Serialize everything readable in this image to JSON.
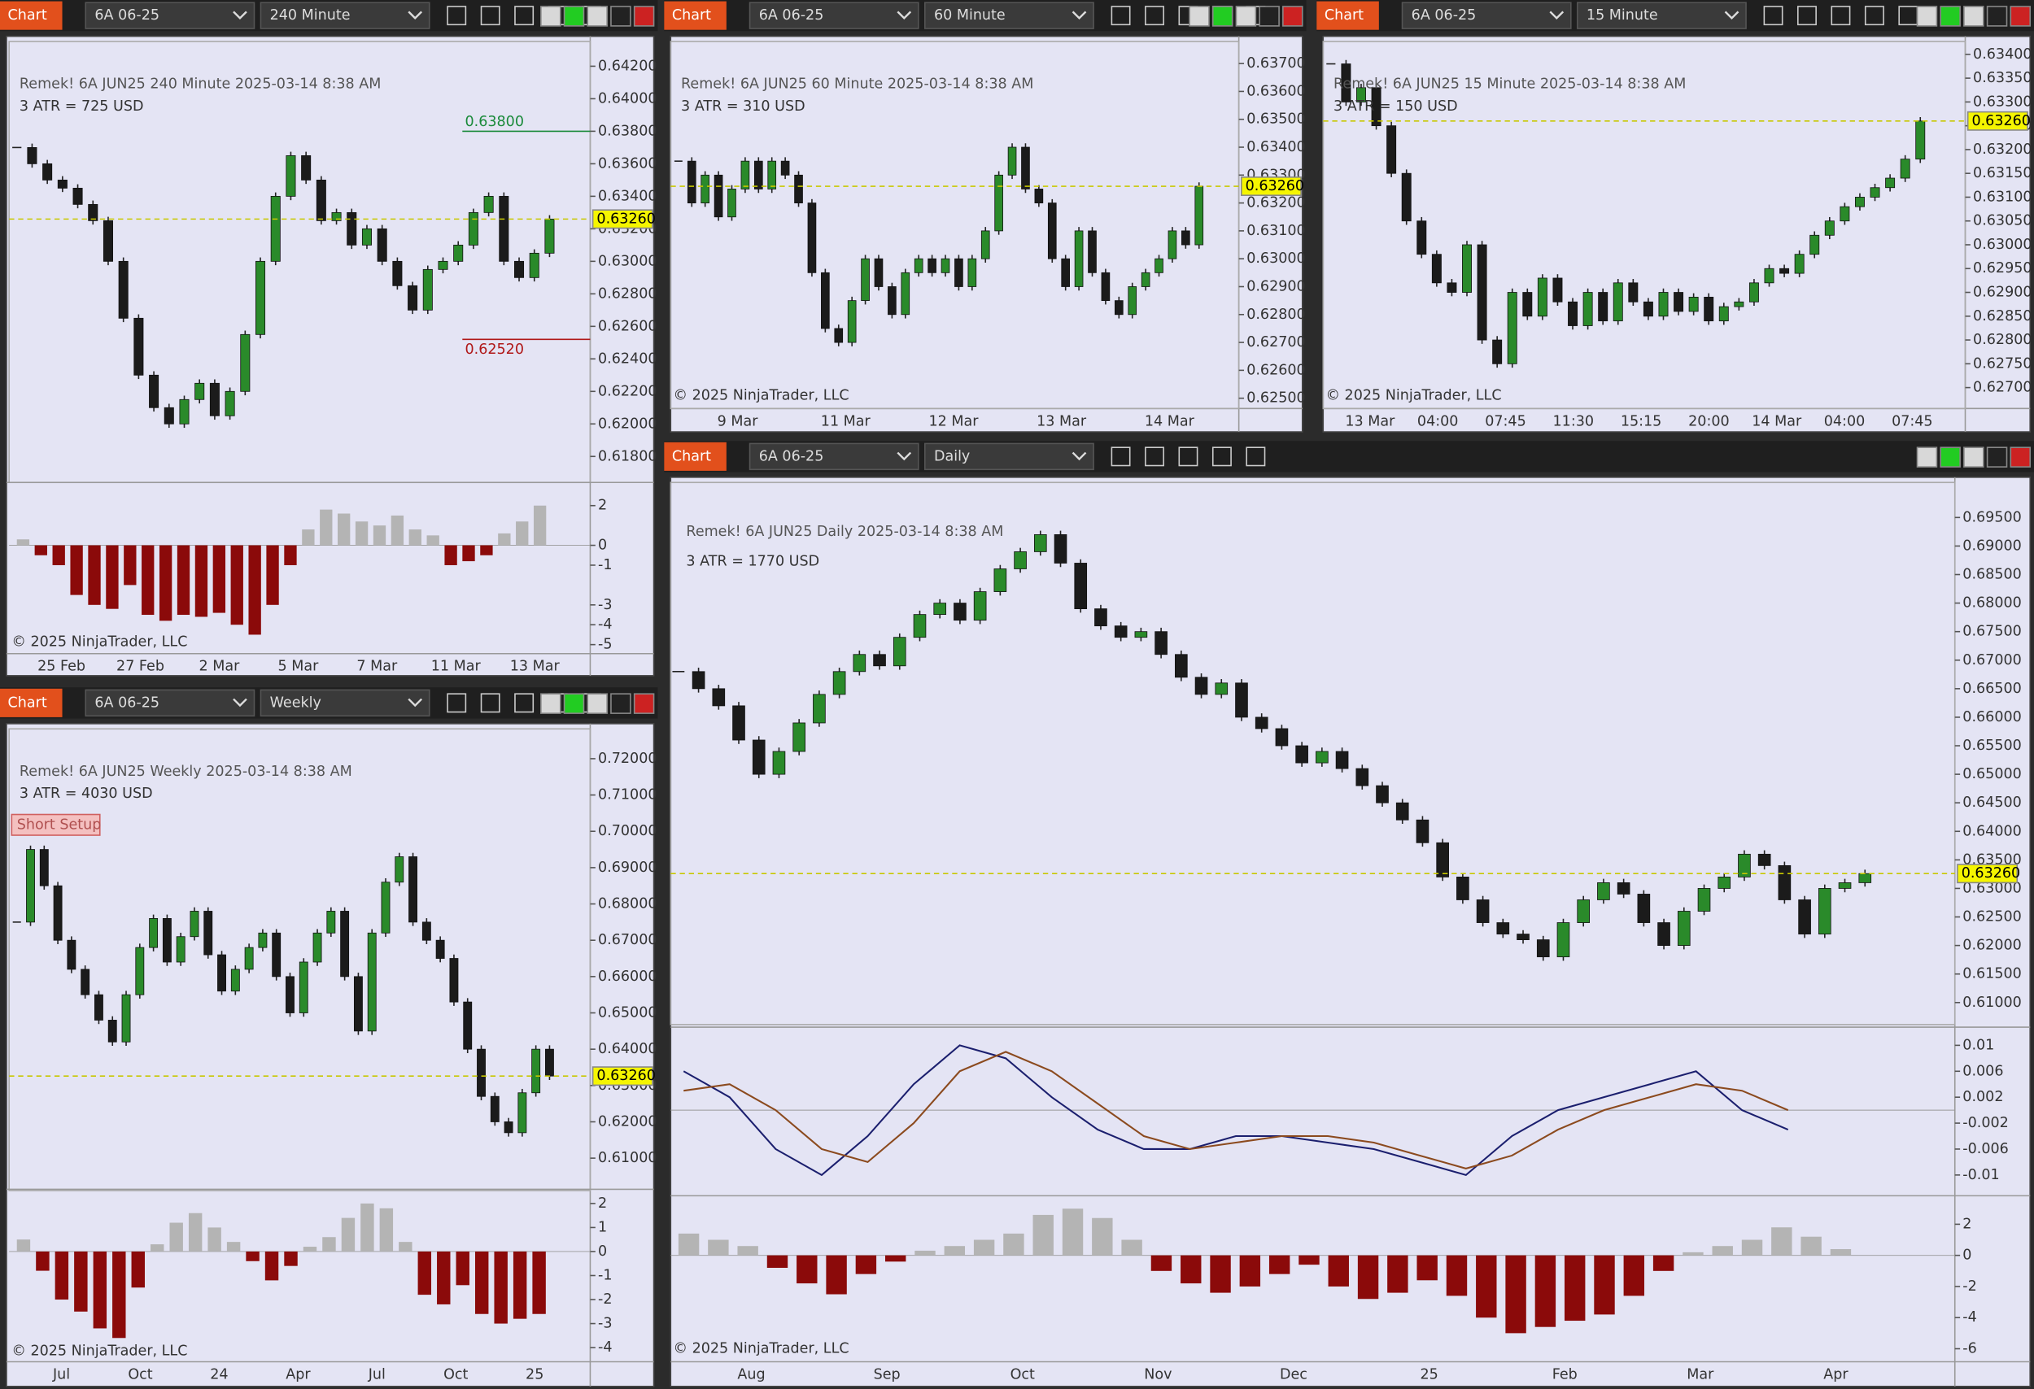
{
  "panels": [
    {
      "toolbar": {
        "button": "Chart",
        "instrument": "6A 06-25",
        "interval": "240 Minute"
      },
      "header": "Remek!  6A JUN25  240 Minute  2025-03-14 8:38 AM",
      "atr": "3 ATR = 725 USD",
      "ylim": [
        0.6164,
        0.64352
      ],
      "price_ticks": [
        {
          "value": 0.642,
          "label": "0.64200"
        },
        {
          "value": 0.64,
          "label": "0.64000"
        },
        {
          "value": 0.638,
          "label": "0.63800"
        },
        {
          "value": 0.636,
          "label": "0.63600"
        },
        {
          "value": 0.634,
          "label": "0.63400"
        },
        {
          "value": 0.632,
          "label": "0.63200"
        },
        {
          "value": 0.63,
          "label": "0.63000"
        },
        {
          "value": 0.628,
          "label": "0.62800"
        },
        {
          "value": 0.626,
          "label": "0.62600"
        },
        {
          "value": 0.624,
          "label": "0.62400"
        },
        {
          "value": 0.622,
          "label": "0.62200"
        },
        {
          "value": 0.62,
          "label": "0.62000"
        },
        {
          "value": 0.618,
          "label": "0.61800"
        }
      ],
      "closes": [
        0.637,
        0.636,
        0.635,
        0.6345,
        0.6335,
        0.6325,
        0.63,
        0.6265,
        0.623,
        0.621,
        0.62,
        0.6215,
        0.6225,
        0.6205,
        0.622,
        0.6255,
        0.63,
        0.634,
        0.6365,
        0.635,
        0.6325,
        0.633,
        0.631,
        0.632,
        0.63,
        0.6285,
        0.627,
        0.6295,
        0.63,
        0.631,
        0.633,
        0.634,
        0.63,
        0.629,
        0.6305,
        0.6326
      ],
      "last_price": {
        "value": 0.6326,
        "label": "0.63260"
      },
      "levels": [
        {
          "value": 0.638,
          "label": "0.63800",
          "color": "#1a8a3a"
        },
        {
          "value": 0.6252,
          "label": "0.62520",
          "color": "#b01818"
        }
      ],
      "time_labels": [
        "25 Feb",
        "27 Feb",
        "2 Mar",
        "5 Mar",
        "7 Mar",
        "11 Mar",
        "13 Mar"
      ],
      "indicator": {
        "ylim": [
          -5.39,
          2.97
        ],
        "ticks": [
          2,
          0,
          -1,
          -3,
          -4,
          -5
        ],
        "values": [
          0.3,
          -0.5,
          -1,
          -2.5,
          -3,
          -3.2,
          -2,
          -3.5,
          -3.8,
          -3.5,
          -3.6,
          -3.4,
          -4,
          -4.5,
          -3,
          -1,
          0.8,
          1.8,
          1.6,
          1.2,
          1,
          1.5,
          0.8,
          0.5,
          -1,
          -0.8,
          -0.5,
          0.6,
          1.2,
          2
        ]
      },
      "copyright": "© 2025 NinjaTrader, LLC"
    },
    {
      "toolbar": {
        "button": "Chart",
        "instrument": "6A 06-25",
        "interval": "60 Minute"
      },
      "header": "Remek!  6A JUN25  60 Minute  2025-03-14 8:38 AM",
      "atr": "3 ATR = 310 USD",
      "ylim": [
        0.62463,
        0.63779
      ],
      "price_ticks": [
        {
          "value": 0.637,
          "label": "0.63700"
        },
        {
          "value": 0.636,
          "label": "0.63600"
        },
        {
          "value": 0.635,
          "label": "0.63500"
        },
        {
          "value": 0.634,
          "label": "0.63400"
        },
        {
          "value": 0.633,
          "label": "0.63300"
        },
        {
          "value": 0.632,
          "label": "0.63200"
        },
        {
          "value": 0.631,
          "label": "0.63100"
        },
        {
          "value": 0.63,
          "label": "0.63000"
        },
        {
          "value": 0.629,
          "label": "0.62900"
        },
        {
          "value": 0.628,
          "label": "0.62800"
        },
        {
          "value": 0.627,
          "label": "0.62700"
        },
        {
          "value": 0.626,
          "label": "0.62600"
        },
        {
          "value": 0.625,
          "label": "0.62500"
        }
      ],
      "closes": [
        0.6335,
        0.632,
        0.633,
        0.6315,
        0.6325,
        0.6335,
        0.6325,
        0.6335,
        0.633,
        0.632,
        0.6295,
        0.6275,
        0.627,
        0.6285,
        0.63,
        0.629,
        0.628,
        0.6295,
        0.63,
        0.6295,
        0.63,
        0.629,
        0.63,
        0.631,
        0.633,
        0.634,
        0.6325,
        0.632,
        0.63,
        0.629,
        0.631,
        0.6295,
        0.6285,
        0.628,
        0.629,
        0.6295,
        0.63,
        0.631,
        0.6305,
        0.6326
      ],
      "last_price": {
        "value": 0.6326,
        "label": "0.63260"
      },
      "time_labels": [
        "9 Mar",
        "11 Mar",
        "12 Mar",
        "13 Mar",
        "14 Mar"
      ],
      "copyright": "© 2025 NinjaTrader, LLC"
    },
    {
      "toolbar": {
        "button": "Chart",
        "instrument": "6A 06-25",
        "interval": "15 Minute"
      },
      "header": "Remek!  6A JUN25  15 Minute  2025-03-14 8:38 AM",
      "atr": "3 ATR = 150 USD",
      "ylim": [
        0.62656,
        0.63427
      ],
      "price_ticks": [
        {
          "value": 0.634,
          "label": "0.63400"
        },
        {
          "value": 0.6335,
          "label": "0.63350"
        },
        {
          "value": 0.633,
          "label": "0.63300"
        },
        {
          "value": 0.6325,
          "label": "0.63250"
        },
        {
          "value": 0.632,
          "label": "0.63200"
        },
        {
          "value": 0.6315,
          "label": "0.63150"
        },
        {
          "value": 0.631,
          "label": "0.63100"
        },
        {
          "value": 0.6305,
          "label": "0.63050"
        },
        {
          "value": 0.63,
          "label": "0.63000"
        },
        {
          "value": 0.6295,
          "label": "0.62950"
        },
        {
          "value": 0.629,
          "label": "0.62900"
        },
        {
          "value": 0.6285,
          "label": "0.62850"
        },
        {
          "value": 0.628,
          "label": "0.62800"
        },
        {
          "value": 0.6275,
          "label": "0.62750"
        },
        {
          "value": 0.627,
          "label": "0.62700"
        }
      ],
      "closes": [
        0.6338,
        0.633,
        0.6333,
        0.6325,
        0.6315,
        0.6305,
        0.6298,
        0.6292,
        0.629,
        0.63,
        0.628,
        0.6275,
        0.629,
        0.6285,
        0.6293,
        0.6288,
        0.6283,
        0.629,
        0.6284,
        0.6292,
        0.6288,
        0.6285,
        0.629,
        0.6286,
        0.6289,
        0.6284,
        0.6287,
        0.6288,
        0.6292,
        0.6295,
        0.6294,
        0.6298,
        0.6302,
        0.6305,
        0.6308,
        0.631,
        0.6312,
        0.6314,
        0.6318,
        0.6326
      ],
      "last_price": {
        "value": 0.6326,
        "label": "0.63260"
      },
      "time_labels": [
        "13 Mar",
        "04:00",
        "07:45",
        "11:30",
        "15:15",
        "20:00",
        "14 Mar",
        "04:00",
        "07:45"
      ],
      "copyright": "© 2025 NinjaTrader, LLC"
    },
    {
      "toolbar": {
        "button": "Chart",
        "instrument": "6A 06-25",
        "interval": "Weekly"
      },
      "header": "Remek!  6A JUN25  Weekly  2025-03-14 8:38 AM",
      "atr": "3 ATR = 4030 USD",
      "note": "Short Setup",
      "ylim": [
        0.60107,
        0.72821
      ],
      "price_ticks": [
        {
          "value": 0.72,
          "label": "0.72000"
        },
        {
          "value": 0.71,
          "label": "0.71000"
        },
        {
          "value": 0.7,
          "label": "0.70000"
        },
        {
          "value": 0.69,
          "label": "0.69000"
        },
        {
          "value": 0.68,
          "label": "0.68000"
        },
        {
          "value": 0.67,
          "label": "0.67000"
        },
        {
          "value": 0.66,
          "label": "0.66000"
        },
        {
          "value": 0.65,
          "label": "0.65000"
        },
        {
          "value": 0.64,
          "label": "0.64000"
        },
        {
          "value": 0.63,
          "label": "0.63000"
        },
        {
          "value": 0.62,
          "label": "0.62000"
        },
        {
          "value": 0.61,
          "label": "0.61000"
        }
      ],
      "closes": [
        0.675,
        0.695,
        0.685,
        0.67,
        0.662,
        0.655,
        0.648,
        0.642,
        0.655,
        0.668,
        0.676,
        0.664,
        0.671,
        0.678,
        0.666,
        0.656,
        0.662,
        0.668,
        0.672,
        0.66,
        0.65,
        0.664,
        0.672,
        0.678,
        0.66,
        0.645,
        0.672,
        0.686,
        0.693,
        0.675,
        0.67,
        0.665,
        0.653,
        0.64,
        0.627,
        0.62,
        0.617,
        0.628,
        0.64,
        0.6326
      ],
      "last_price": {
        "value": 0.6326,
        "label": "0.63260"
      },
      "time_labels": [
        "Jul",
        "Oct",
        "24",
        "Apr",
        "Jul",
        "Oct",
        "25"
      ],
      "indicator": {
        "ylim": [
          -4.59,
          2.43
        ],
        "ticks": [
          2,
          1,
          0,
          -1,
          -2,
          -3,
          -4
        ],
        "values": [
          0.5,
          -0.8,
          -2,
          -2.5,
          -3.2,
          -3.6,
          -1.5,
          0.3,
          1.2,
          1.6,
          1,
          0.4,
          -0.4,
          -1.2,
          -0.6,
          0.2,
          0.6,
          1.4,
          2,
          1.8,
          0.4,
          -1.8,
          -2.2,
          -1.4,
          -2.6,
          -3,
          -2.8,
          -2.6
        ]
      },
      "copyright": "© 2025 NinjaTrader, LLC"
    },
    {
      "toolbar": {
        "button": "Chart",
        "instrument": "6A 06-25",
        "interval": "Daily"
      },
      "header": "Remek!  6A JUN25  Daily  2025-03-14 8:38 AM",
      "atr": "3 ATR = 1770 USD",
      "ylim": [
        0.60614,
        0.70114
      ],
      "price_ticks": [
        {
          "value": 0.695,
          "label": "0.69500"
        },
        {
          "value": 0.69,
          "label": "0.69000"
        },
        {
          "value": 0.685,
          "label": "0.68500"
        },
        {
          "value": 0.68,
          "label": "0.68000"
        },
        {
          "value": 0.675,
          "label": "0.67500"
        },
        {
          "value": 0.67,
          "label": "0.67000"
        },
        {
          "value": 0.665,
          "label": "0.66500"
        },
        {
          "value": 0.66,
          "label": "0.66000"
        },
        {
          "value": 0.655,
          "label": "0.65500"
        },
        {
          "value": 0.65,
          "label": "0.65000"
        },
        {
          "value": 0.645,
          "label": "0.64500"
        },
        {
          "value": 0.64,
          "label": "0.64000"
        },
        {
          "value": 0.635,
          "label": "0.63500"
        },
        {
          "value": 0.63,
          "label": "0.63000"
        },
        {
          "value": 0.625,
          "label": "0.62500"
        },
        {
          "value": 0.62,
          "label": "0.62000"
        },
        {
          "value": 0.615,
          "label": "0.61500"
        },
        {
          "value": 0.61,
          "label": "0.61000"
        }
      ],
      "closes": [
        0.668,
        0.665,
        0.662,
        0.656,
        0.65,
        0.654,
        0.659,
        0.664,
        0.668,
        0.671,
        0.669,
        0.674,
        0.678,
        0.68,
        0.677,
        0.682,
        0.686,
        0.689,
        0.692,
        0.687,
        0.679,
        0.676,
        0.674,
        0.675,
        0.671,
        0.667,
        0.664,
        0.666,
        0.66,
        0.658,
        0.655,
        0.652,
        0.654,
        0.651,
        0.648,
        0.645,
        0.642,
        0.638,
        0.632,
        0.628,
        0.624,
        0.622,
        0.621,
        0.618,
        0.624,
        0.628,
        0.631,
        0.629,
        0.624,
        0.62,
        0.626,
        0.63,
        0.632,
        0.636,
        0.634,
        0.628,
        0.622,
        0.63,
        0.631,
        0.6326
      ],
      "last_price": {
        "value": 0.6326,
        "label": "0.63260"
      },
      "time_labels": [
        "Aug",
        "Sep",
        "Oct",
        "Nov",
        "Dec",
        "25",
        "Feb",
        "Mar",
        "Apr"
      ],
      "oscillator": {
        "ylim": [
          -0.0118,
          0.0122
        ],
        "ticks": [
          0.01,
          0.006,
          0.002,
          -0.002,
          -0.006,
          -0.01
        ],
        "series": [
          {
            "color": "#1b1f6e",
            "values": [
              0.006,
              0.002,
              -0.006,
              -0.01,
              -0.004,
              0.004,
              0.01,
              0.008,
              0.002,
              -0.003,
              -0.006,
              -0.006,
              -0.004,
              -0.004,
              -0.005,
              -0.006,
              -0.008,
              -0.01,
              -0.004,
              0,
              0.002,
              0.004,
              0.006,
              0,
              -0.003
            ]
          },
          {
            "color": "#8b4a1e",
            "values": [
              0.003,
              0.004,
              0,
              -0.006,
              -0.008,
              -0.002,
              0.006,
              0.009,
              0.006,
              0.001,
              -0.004,
              -0.006,
              -0.005,
              -0.004,
              -0.004,
              -0.005,
              -0.007,
              -0.009,
              -0.007,
              -0.003,
              0,
              0.002,
              0.004,
              0.003,
              0
            ]
          }
        ]
      },
      "indicator": {
        "ylim": [
          -6.67,
          3.58
        ],
        "ticks": [
          2,
          0,
          -2,
          -4,
          -6
        ],
        "values": [
          1.4,
          1,
          0.6,
          -0.8,
          -1.8,
          -2.5,
          -1.2,
          -0.4,
          0.3,
          0.6,
          1,
          1.4,
          2.6,
          3,
          2.4,
          1,
          -1,
          -1.8,
          -2.4,
          -2,
          -1.2,
          -0.6,
          -2,
          -2.8,
          -2.4,
          -1.6,
          -2.6,
          -4,
          -5,
          -4.6,
          -4.2,
          -3.8,
          -2.6,
          -1,
          0.2,
          0.6,
          1,
          1.8,
          1.2,
          0.4
        ]
      },
      "copyright": "© 2025 NinjaTrader, LLC"
    }
  ]
}
